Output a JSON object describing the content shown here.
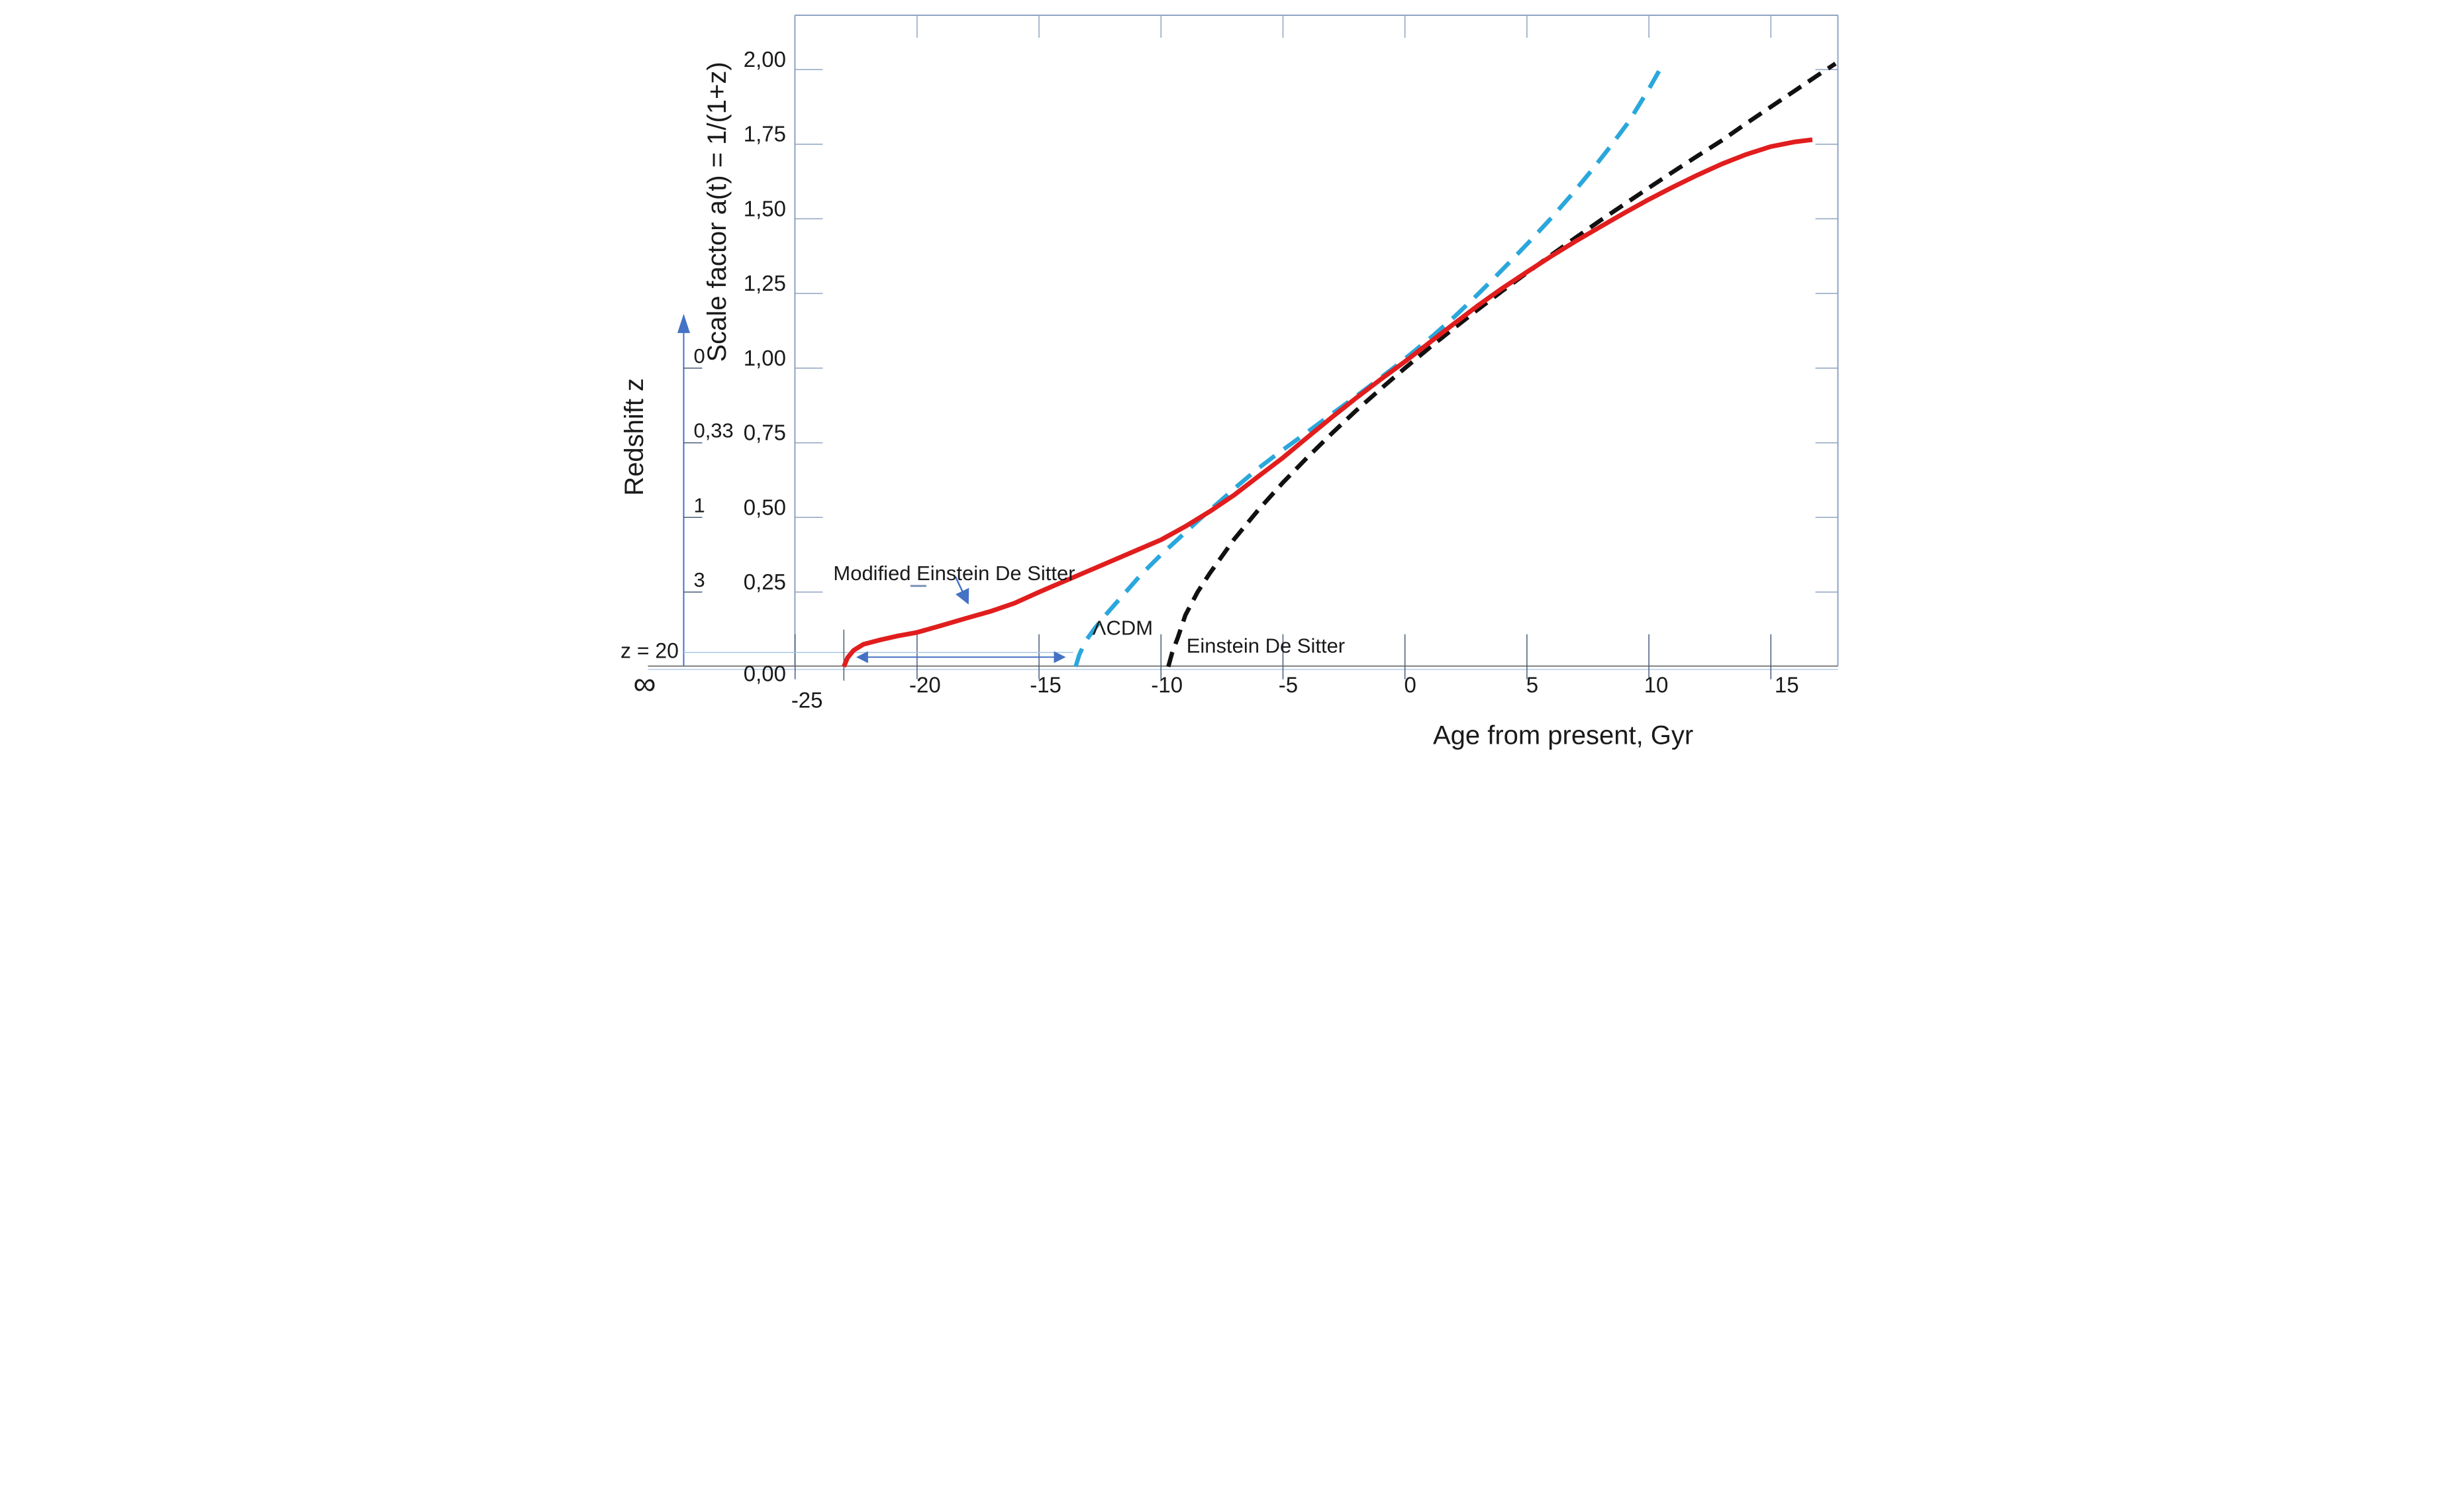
{
  "chart_data": {
    "type": "line",
    "title": "",
    "x_axis": {
      "title": "Age from present, Gyr",
      "min": -25,
      "max": 17.75,
      "ticks": [
        -25,
        -20,
        -15,
        -10,
        -5,
        0,
        5,
        10,
        15
      ],
      "tick_labels": [
        "-25",
        "-20",
        "-15",
        "-10",
        "-5",
        "0",
        "5",
        "10",
        "15"
      ]
    },
    "y_axis": {
      "title": "Scale factor a(t) = 1/(1+z)",
      "min": 0,
      "max": 2.18,
      "ticks": [
        0,
        0.25,
        0.5,
        0.75,
        1.0,
        1.25,
        1.5,
        1.75,
        2.0
      ],
      "tick_labels": [
        "0,00",
        "0,25",
        "0,50",
        "0,75",
        "1,00",
        "1,25",
        "1,50",
        "1,75",
        "2,00"
      ],
      "decimal_separator": ","
    },
    "y2_axis": {
      "title": "Redshift z",
      "ticks": [
        {
          "label": "0",
          "a": 1.0
        },
        {
          "label": "0,33",
          "a": 0.75
        },
        {
          "label": "1",
          "a": 0.5
        },
        {
          "label": "3",
          "a": 0.25
        }
      ],
      "z20": {
        "label": "z = 20",
        "a": 0.0476
      },
      "infinity_label": "∞",
      "arrow_color": "#4472c4"
    },
    "grid": false,
    "legend_position": "inline-labels",
    "series": [
      {
        "name": "modified-einstein-de-sitter",
        "label": "Modified Einstein De Sitter",
        "color": "#e11d1d",
        "style": "solid",
        "points": [
          [
            -23.0,
            0
          ],
          [
            -22.85,
            0.03
          ],
          [
            -22.6,
            0.055
          ],
          [
            -22.2,
            0.075
          ],
          [
            -21.5,
            0.09
          ],
          [
            -20.8,
            0.103
          ],
          [
            -20,
            0.115
          ],
          [
            -19,
            0.138
          ],
          [
            -18,
            0.162
          ],
          [
            -17,
            0.185
          ],
          [
            -16,
            0.213
          ],
          [
            -15,
            0.25
          ],
          [
            -14,
            0.285
          ],
          [
            -13,
            0.32
          ],
          [
            -12,
            0.355
          ],
          [
            -11,
            0.39
          ],
          [
            -10,
            0.425
          ],
          [
            -9,
            0.47
          ],
          [
            -8,
            0.52
          ],
          [
            -7,
            0.575
          ],
          [
            -6,
            0.638
          ],
          [
            -5,
            0.7
          ],
          [
            -4,
            0.768
          ],
          [
            -3,
            0.835
          ],
          [
            -2,
            0.9
          ],
          [
            -1,
            0.962
          ],
          [
            0,
            1.022
          ],
          [
            1,
            1.085
          ],
          [
            2,
            1.148
          ],
          [
            3,
            1.21
          ],
          [
            4,
            1.268
          ],
          [
            5,
            1.322
          ],
          [
            6,
            1.375
          ],
          [
            7,
            1.425
          ],
          [
            8,
            1.473
          ],
          [
            9,
            1.52
          ],
          [
            10,
            1.565
          ],
          [
            11,
            1.607
          ],
          [
            12,
            1.647
          ],
          [
            13,
            1.684
          ],
          [
            14,
            1.716
          ],
          [
            15,
            1.742
          ],
          [
            16,
            1.758
          ],
          [
            16.7,
            1.765
          ]
        ]
      },
      {
        "name": "lambda-cdm",
        "label": "ΛCDM",
        "color": "#2aa7dc",
        "style": "dashed",
        "points": [
          [
            -13.5,
            0
          ],
          [
            -13.35,
            0.04
          ],
          [
            -13.1,
            0.085
          ],
          [
            -12.7,
            0.13
          ],
          [
            -12.2,
            0.18
          ],
          [
            -11.5,
            0.245
          ],
          [
            -10.8,
            0.31
          ],
          [
            -10,
            0.375
          ],
          [
            -9.2,
            0.435
          ],
          [
            -8.4,
            0.495
          ],
          [
            -7.6,
            0.553
          ],
          [
            -6.8,
            0.61
          ],
          [
            -6,
            0.665
          ],
          [
            -5.2,
            0.715
          ],
          [
            -4.4,
            0.762
          ],
          [
            -3.6,
            0.81
          ],
          [
            -2.8,
            0.858
          ],
          [
            -2,
            0.906
          ],
          [
            -1.2,
            0.955
          ],
          [
            -0.4,
            1.005
          ],
          [
            0.4,
            1.058
          ],
          [
            1.2,
            1.112
          ],
          [
            2,
            1.17
          ],
          [
            2.8,
            1.232
          ],
          [
            3.6,
            1.297
          ],
          [
            4.4,
            1.364
          ],
          [
            5.2,
            1.432
          ],
          [
            6,
            1.503
          ],
          [
            6.8,
            1.578
          ],
          [
            7.6,
            1.657
          ],
          [
            8.4,
            1.74
          ],
          [
            9.2,
            1.828
          ],
          [
            10,
            1.935
          ],
          [
            10.45,
            2.0
          ]
        ]
      },
      {
        "name": "einstein-de-sitter",
        "label": "Einstein De Sitter",
        "color": "#111111",
        "style": "dashed",
        "points": [
          [
            -9.7,
            0
          ],
          [
            -9.55,
            0.045
          ],
          [
            -9.3,
            0.1
          ],
          [
            -9,
            0.173
          ],
          [
            -8.5,
            0.25
          ],
          [
            -8,
            0.313
          ],
          [
            -7,
            0.427
          ],
          [
            -6,
            0.526
          ],
          [
            -5,
            0.617
          ],
          [
            -4,
            0.701
          ],
          [
            -3,
            0.781
          ],
          [
            -2,
            0.858
          ],
          [
            -1,
            0.93
          ],
          [
            0,
            1.0
          ],
          [
            1,
            1.068
          ],
          [
            2,
            1.133
          ],
          [
            3,
            1.197
          ],
          [
            4,
            1.259
          ],
          [
            5,
            1.319
          ],
          [
            6,
            1.379
          ],
          [
            7,
            1.437
          ],
          [
            8,
            1.494
          ],
          [
            9,
            1.549
          ],
          [
            10,
            1.604
          ],
          [
            11,
            1.658
          ],
          [
            12,
            1.711
          ],
          [
            13,
            1.763
          ],
          [
            14,
            1.82
          ],
          [
            15,
            1.875
          ],
          [
            16,
            1.93
          ],
          [
            17,
            1.985
          ],
          [
            17.65,
            2.02
          ]
        ]
      }
    ],
    "annotations": {
      "z20_line": {
        "from_x": -25,
        "to_x": -13.6,
        "a": 0.0476,
        "color": "#a9c7e6"
      },
      "expansion_double_arrow": {
        "from_x": -22.4,
        "to_x": -14.0,
        "a": 0.032,
        "color": "#4472c4"
      },
      "modified_label_arrow": {
        "color": "#4472c4"
      },
      "touchdown_guide_x": -23.0,
      "small_dash_color": "#7a93b8"
    },
    "frame_color": "#8fa3c0",
    "tick_color": "#4a5a7a",
    "axis_line_gray": "#7f7f7f",
    "axis_line_blue": "#b7cde9"
  }
}
